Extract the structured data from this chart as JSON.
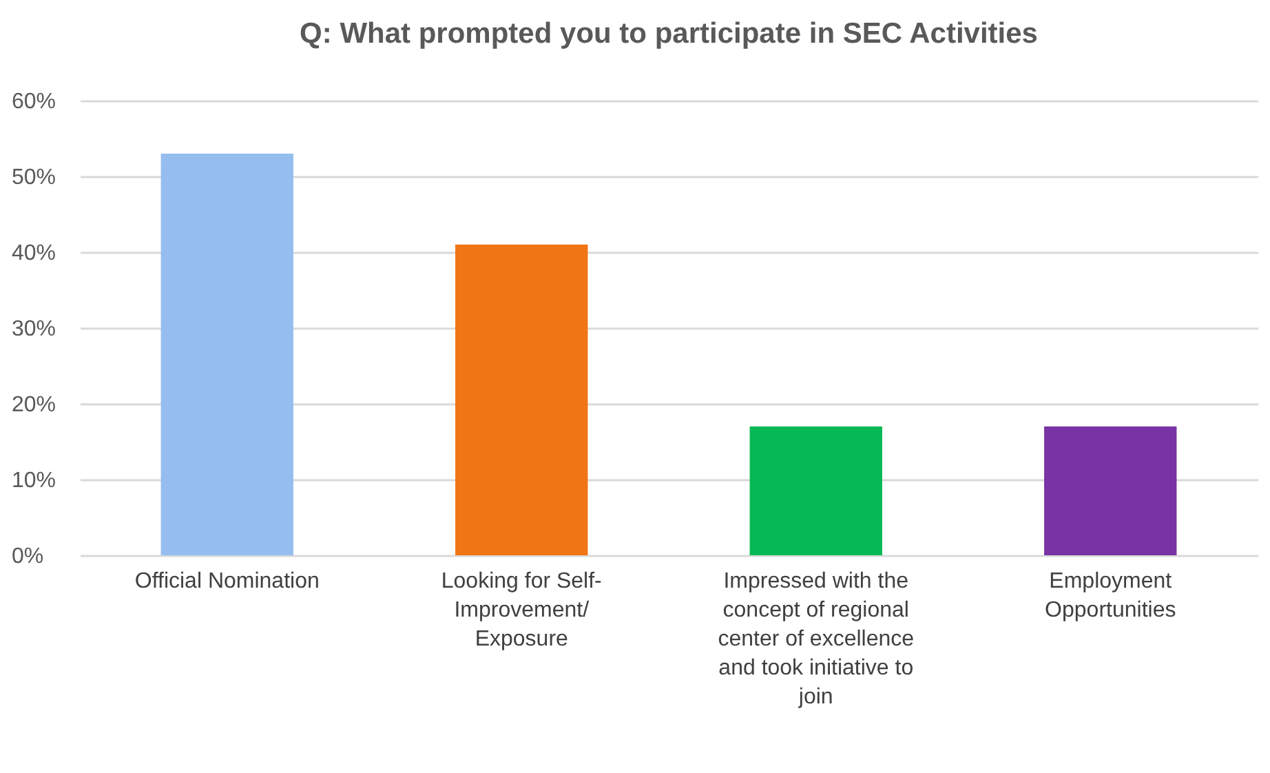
{
  "chart_data": {
    "type": "bar",
    "title": "Q: What prompted you to participate in SEC Activities",
    "categories": [
      "Official Nomination",
      "Looking for Self-Improvement/ Exposure",
      "Impressed with the concept of regional center of excellence and took initiative to join",
      "Employment Opportunities"
    ],
    "values": [
      0.53,
      0.41,
      0.17,
      0.17
    ],
    "colors": [
      "#95bdee",
      "#f07515",
      "#07b856",
      "#7833a5"
    ],
    "ylim": [
      0,
      0.6
    ],
    "yticks": [
      {
        "value": 0,
        "label": "0%"
      },
      {
        "value": 0.1,
        "label": "10%"
      },
      {
        "value": 0.2,
        "label": "20%"
      },
      {
        "value": 0.3,
        "label": "30%"
      },
      {
        "value": 0.4,
        "label": "40%"
      },
      {
        "value": 0.5,
        "label": "50%"
      },
      {
        "value": 0.6,
        "label": "60%"
      }
    ],
    "grid": "y"
  }
}
